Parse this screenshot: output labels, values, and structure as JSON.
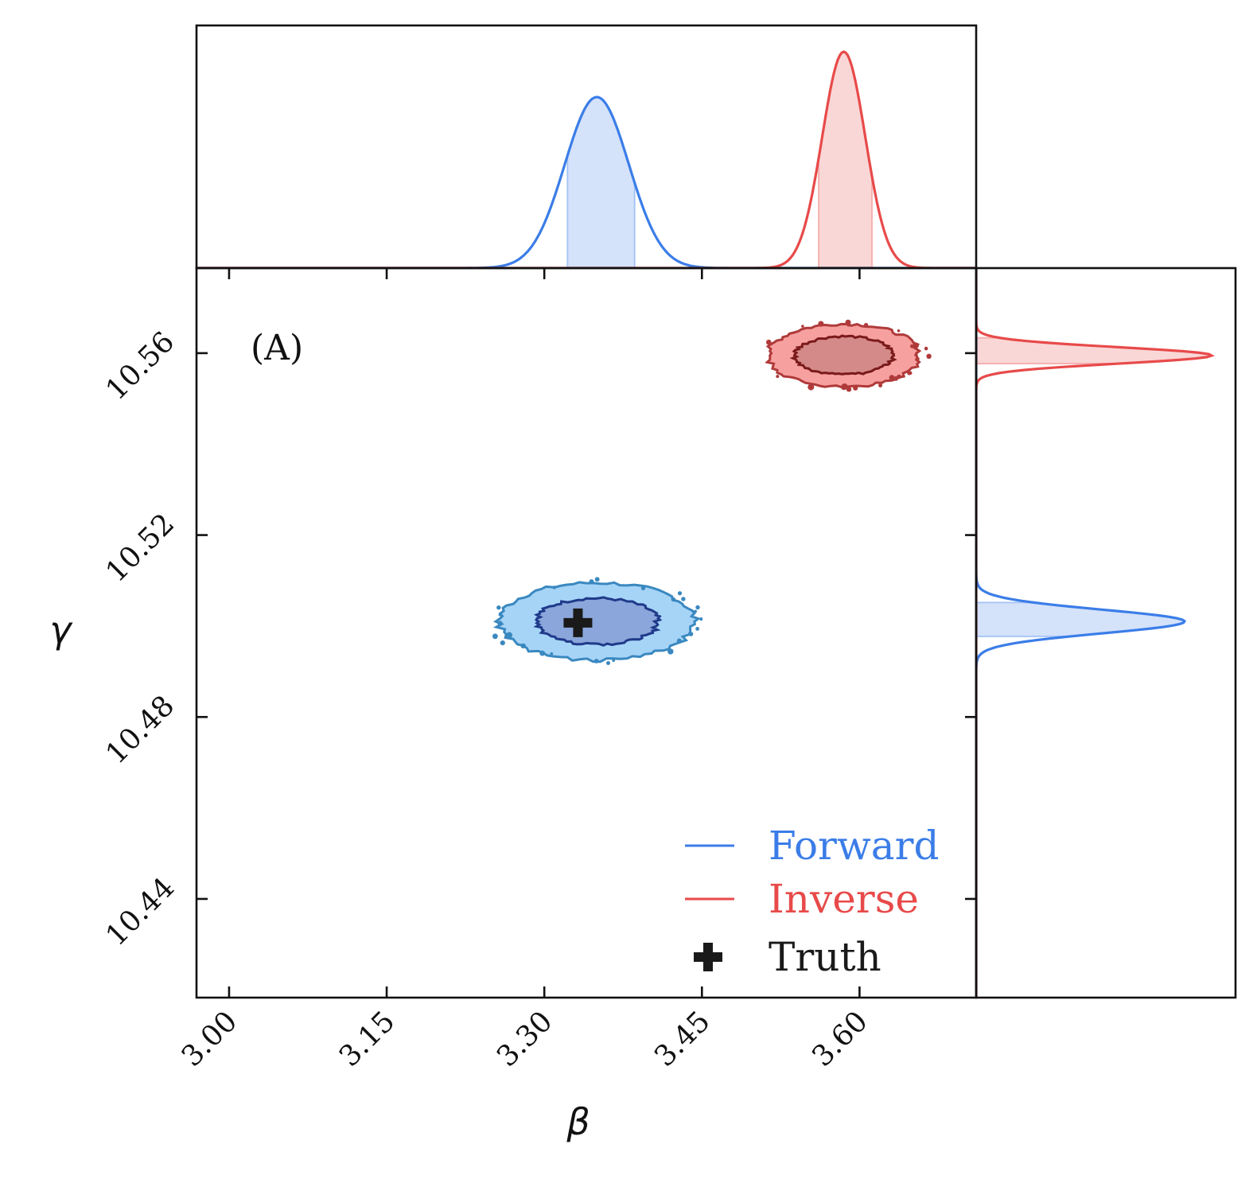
{
  "chart_data": {
    "type": "corner-plot",
    "panel_label": "(A)",
    "xlabel": "β",
    "ylabel": "γ",
    "xlim": [
      2.969,
      3.711
    ],
    "ylim": [
      10.4183,
      10.5787
    ],
    "xticks": [
      3.0,
      3.15,
      3.3,
      3.45,
      3.6
    ],
    "xtick_labels": [
      "3.00",
      "3.15",
      "3.30",
      "3.45",
      "3.60"
    ],
    "yticks": [
      10.44,
      10.48,
      10.52,
      10.56
    ],
    "ytick_labels": [
      "10.44",
      "10.48",
      "10.52",
      "10.56"
    ],
    "series": [
      {
        "name": "Forward",
        "color": "#3b7de8",
        "fill_inner": "#8aa6da",
        "fill_outer": "#a6d4f7",
        "edge_inner": "#1f3a8a",
        "edge_outer": "#3a88c0",
        "mean": [
          3.35,
          10.501
        ],
        "std": [
          0.0305,
          0.0026
        ],
        "beta_interval_68": [
          3.322,
          3.386
        ],
        "gamma_interval_68": [
          10.4977,
          10.5052
        ],
        "contour_1sigma": [
          0.058,
          0.0051
        ],
        "contour_2sigma": [
          0.093,
          0.0085
        ]
      },
      {
        "name": "Inverse",
        "color": "#e84a4a",
        "fill_inner": "#d58a8a",
        "fill_outer": "#f7a0a0",
        "edge_inner": "#7a1a1a",
        "edge_outer": "#b03a3a",
        "mean": [
          3.585,
          10.5595
        ],
        "std": [
          0.0205,
          0.0018
        ],
        "beta_interval_68": [
          3.561,
          3.612
        ],
        "gamma_interval_68": [
          10.5577,
          10.5634
        ],
        "contour_1sigma": [
          0.047,
          0.0042
        ],
        "contour_2sigma": [
          0.072,
          0.0069
        ]
      }
    ],
    "truth": {
      "name": "Truth",
      "beta": 3.332,
      "gamma": 10.5007,
      "color": "#1a1a1a"
    },
    "legend": {
      "position": "lower-right",
      "entries": [
        "Forward",
        "Inverse",
        "Truth"
      ]
    }
  }
}
